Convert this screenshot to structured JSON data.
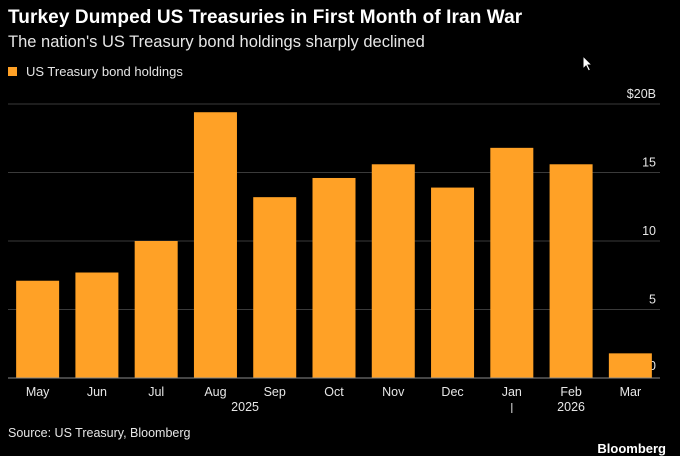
{
  "header": {
    "title": "Turkey Dumped US Treasuries in First Month of Iran War",
    "subtitle": "The nation's US Treasury bond holdings sharply declined"
  },
  "footer": {
    "source": "Source: US Treasury, Bloomberg",
    "brand": "Bloomberg"
  },
  "colors": {
    "background": "#000000",
    "bar": "#ffa126",
    "grid": "#3a3a3a",
    "text": "#e6e6e6"
  },
  "icons": {
    "cursor": "mouse-pointer-icon"
  },
  "chart_data": {
    "type": "bar",
    "categories": [
      "May",
      "Jun",
      "Jul",
      "Aug",
      "Sep",
      "Oct",
      "Nov",
      "Dec",
      "Jan",
      "Feb",
      "Mar"
    ],
    "year_labels": [
      {
        "label": "2025",
        "from": "May",
        "to": "Dec"
      },
      {
        "label": "2026",
        "from": "Jan",
        "to": "Mar"
      }
    ],
    "series": [
      {
        "name": "US Treasury bond holdings",
        "values": [
          7.1,
          7.7,
          10.0,
          19.4,
          13.2,
          14.6,
          15.6,
          13.9,
          16.8,
          15.6,
          1.8
        ]
      }
    ],
    "yticks": [
      {
        "value": 0,
        "label": "0"
      },
      {
        "value": 5,
        "label": "5"
      },
      {
        "value": 10,
        "label": "10"
      },
      {
        "value": 15,
        "label": "15"
      },
      {
        "value": 20,
        "label": "$20B"
      }
    ],
    "ylim": [
      0,
      20
    ],
    "y_axis_side": "right",
    "grid": true,
    "legend_position": "top-left"
  }
}
